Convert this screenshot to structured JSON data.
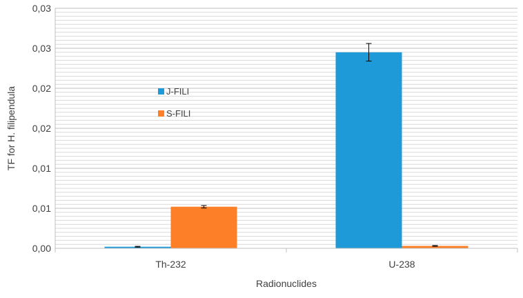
{
  "chart_data": {
    "type": "bar",
    "title": "",
    "xlabel": "Radionuclides",
    "ylabel": "TF for H. filipendula",
    "categories": [
      "Th-232",
      "U-238"
    ],
    "y_tick_labels": [
      "0,00",
      "0,01",
      "0,01",
      "0,02",
      "0,02",
      "0,03",
      "0,03"
    ],
    "ylim": [
      0,
      0.03
    ],
    "grid": true,
    "legend_position": "upper-left inside plot",
    "series": [
      {
        "name": "J-FILI",
        "color": "#1f9ad8",
        "values": [
          0.0002,
          0.0245
        ],
        "errors": [
          5e-05,
          0.0011
        ]
      },
      {
        "name": "S-FILI",
        "color": "#fd7f27",
        "values": [
          0.0052,
          0.0003
        ],
        "errors": [
          0.00015,
          5e-05
        ]
      }
    ]
  }
}
